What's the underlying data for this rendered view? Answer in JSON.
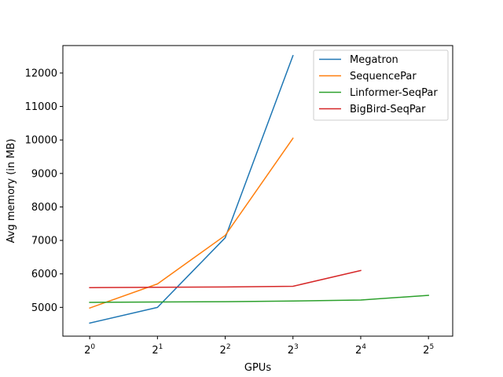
{
  "chart_data": {
    "type": "line",
    "title": "",
    "xlabel": "GPUs",
    "ylabel": "Avg memory (in MB)",
    "x_scale": "log2",
    "x_ticks": [
      {
        "value": 1,
        "base": "2",
        "exp": "0"
      },
      {
        "value": 2,
        "base": "2",
        "exp": "1"
      },
      {
        "value": 4,
        "base": "2",
        "exp": "2"
      },
      {
        "value": 8,
        "base": "2",
        "exp": "3"
      },
      {
        "value": 16,
        "base": "2",
        "exp": "4"
      },
      {
        "value": 32,
        "base": "2",
        "exp": "5"
      }
    ],
    "y_ticks": [
      5000,
      6000,
      7000,
      8000,
      9000,
      10000,
      11000,
      12000
    ],
    "xlim": [
      0.76,
      41
    ],
    "ylim": [
      4140,
      12820
    ],
    "grid": false,
    "legend_position": "top-right",
    "series": [
      {
        "name": "Megatron",
        "color": "#1f77b4",
        "x": [
          1,
          2,
          4,
          8
        ],
        "y": [
          4530,
          5000,
          7080,
          12520
        ]
      },
      {
        "name": "SequencePar",
        "color": "#ff7f0e",
        "x": [
          1,
          2,
          4,
          8
        ],
        "y": [
          4980,
          5700,
          7150,
          10050
        ]
      },
      {
        "name": "Linformer-SeqPar",
        "color": "#2ca02c",
        "x": [
          1,
          2,
          4,
          8,
          16,
          32
        ],
        "y": [
          5150,
          5160,
          5170,
          5190,
          5220,
          5360
        ]
      },
      {
        "name": "BigBird-SeqPar",
        "color": "#d62728",
        "x": [
          1,
          2,
          4,
          8,
          16
        ],
        "y": [
          5590,
          5600,
          5610,
          5630,
          6100
        ]
      }
    ]
  }
}
